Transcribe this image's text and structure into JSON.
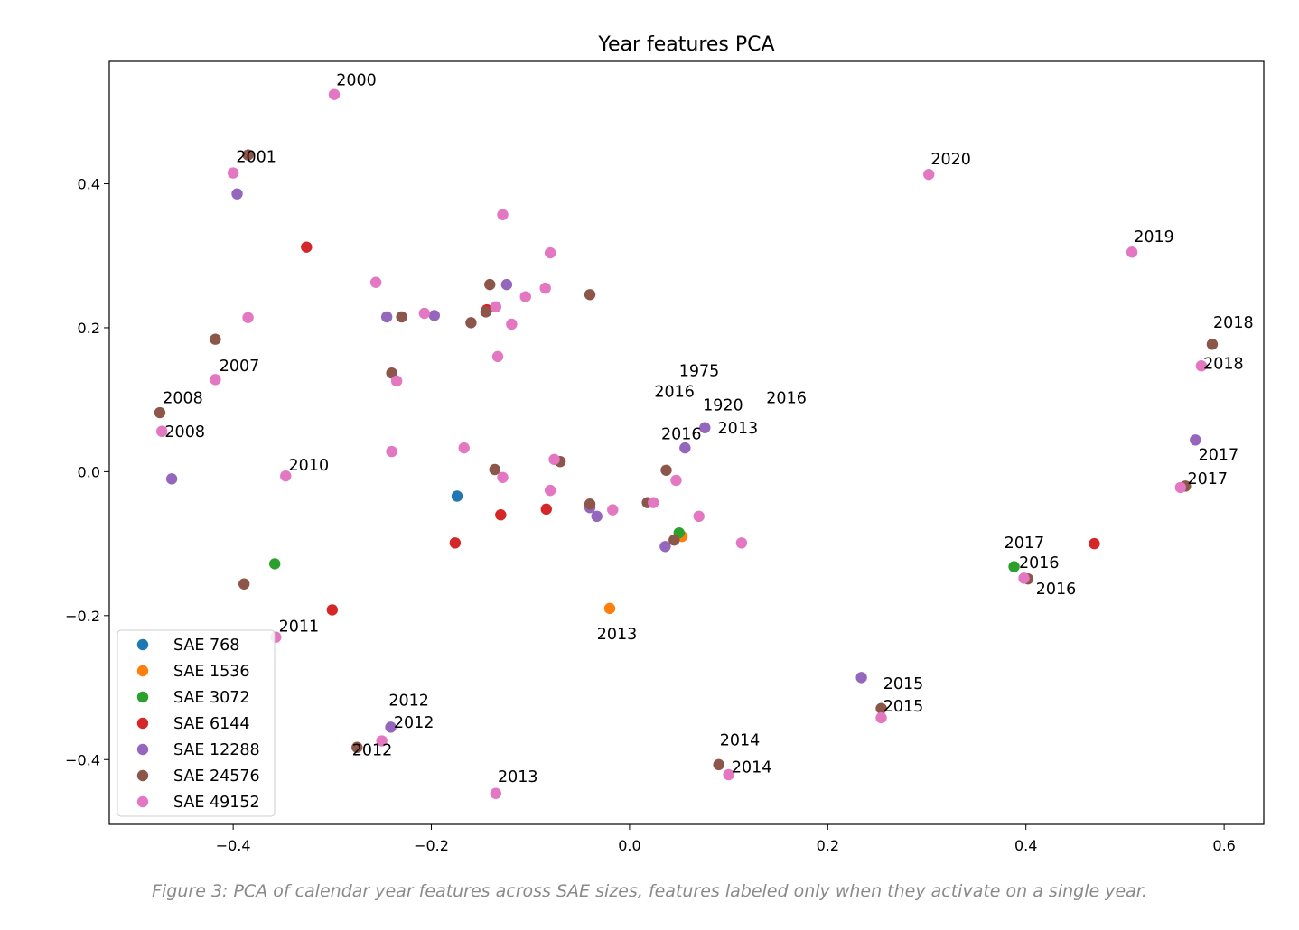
{
  "chart_data": {
    "type": "scatter",
    "title": "Year features PCA",
    "xlabel": "",
    "ylabel": "",
    "xlim": [
      -0.525,
      0.64
    ],
    "ylim": [
      -0.49,
      0.57
    ],
    "xticks": [
      -0.4,
      -0.2,
      0.0,
      0.2,
      0.4,
      0.6
    ],
    "xtick_labels": [
      "−0.4",
      "−0.2",
      "0.0",
      "0.2",
      "0.4",
      "0.6"
    ],
    "yticks": [
      -0.4,
      -0.2,
      0.0,
      0.2,
      0.4
    ],
    "ytick_labels": [
      "−0.4",
      "−0.2",
      "0.0",
      "0.2",
      "0.4"
    ],
    "grid": false,
    "legend_position": "lower-left",
    "series": [
      {
        "name": "SAE 768",
        "color": "#1f77b4",
        "points": [
          [
            -0.174,
            -0.034
          ]
        ]
      },
      {
        "name": "SAE 1536",
        "color": "#ff7f0e",
        "points": [
          [
            0.053,
            -0.09
          ],
          [
            -0.02,
            -0.19
          ]
        ]
      },
      {
        "name": "SAE 3072",
        "color": "#2ca02c",
        "points": [
          [
            -0.358,
            -0.128
          ],
          [
            0.05,
            -0.085
          ],
          [
            0.388,
            -0.132
          ]
        ]
      },
      {
        "name": "SAE 6144",
        "color": "#d62728",
        "points": [
          [
            -0.326,
            0.312
          ],
          [
            -0.144,
            0.225
          ],
          [
            -0.13,
            -0.06
          ],
          [
            -0.176,
            -0.099
          ],
          [
            -0.084,
            -0.052
          ],
          [
            -0.3,
            -0.192
          ],
          [
            0.469,
            -0.1
          ]
        ]
      },
      {
        "name": "SAE 12288",
        "color": "#9467bd",
        "points": [
          [
            -0.396,
            0.386
          ],
          [
            -0.245,
            0.215
          ],
          [
            -0.197,
            0.217
          ],
          [
            -0.124,
            0.26
          ],
          [
            -0.462,
            -0.01
          ],
          [
            -0.04,
            -0.05
          ],
          [
            -0.033,
            -0.062
          ],
          [
            0.036,
            -0.104
          ],
          [
            0.056,
            0.033
          ],
          [
            0.076,
            0.061
          ],
          [
            0.571,
            0.044
          ],
          [
            0.234,
            -0.286
          ],
          [
            -0.241,
            -0.355
          ]
        ]
      },
      {
        "name": "SAE 24576",
        "color": "#8c564b",
        "points": [
          [
            -0.385,
            0.44
          ],
          [
            -0.418,
            0.184
          ],
          [
            -0.23,
            0.215
          ],
          [
            -0.24,
            0.137
          ],
          [
            -0.141,
            0.26
          ],
          [
            -0.16,
            0.207
          ],
          [
            -0.145,
            0.222
          ],
          [
            -0.04,
            0.246
          ],
          [
            -0.474,
            0.082
          ],
          [
            -0.136,
            0.003
          ],
          [
            -0.07,
            0.014
          ],
          [
            -0.04,
            -0.045
          ],
          [
            0.018,
            -0.043
          ],
          [
            0.037,
            0.002
          ],
          [
            0.045,
            -0.095
          ],
          [
            0.588,
            0.177
          ],
          [
            0.561,
            -0.02
          ],
          [
            0.402,
            -0.149
          ],
          [
            -0.389,
            -0.156
          ],
          [
            0.254,
            -0.329
          ],
          [
            -0.275,
            -0.383
          ],
          [
            0.09,
            -0.407
          ]
        ]
      },
      {
        "name": "SAE 49152",
        "color": "#e377c2",
        "points": [
          [
            -0.298,
            0.524
          ],
          [
            -0.4,
            0.415
          ],
          [
            -0.128,
            0.357
          ],
          [
            -0.08,
            0.304
          ],
          [
            -0.256,
            0.263
          ],
          [
            -0.385,
            0.214
          ],
          [
            -0.207,
            0.22
          ],
          [
            -0.135,
            0.229
          ],
          [
            -0.105,
            0.243
          ],
          [
            -0.085,
            0.255
          ],
          [
            -0.119,
            0.205
          ],
          [
            -0.133,
            0.16
          ],
          [
            -0.418,
            0.128
          ],
          [
            -0.235,
            0.126
          ],
          [
            -0.472,
            0.056
          ],
          [
            -0.24,
            0.028
          ],
          [
            -0.167,
            0.033
          ],
          [
            -0.128,
            -0.008
          ],
          [
            -0.076,
            0.017
          ],
          [
            -0.08,
            -0.026
          ],
          [
            -0.347,
            -0.006
          ],
          [
            -0.017,
            -0.053
          ],
          [
            0.024,
            -0.043
          ],
          [
            0.047,
            -0.012
          ],
          [
            0.07,
            -0.062
          ],
          [
            0.113,
            -0.099
          ],
          [
            0.302,
            0.413
          ],
          [
            0.507,
            0.305
          ],
          [
            0.577,
            0.147
          ],
          [
            0.556,
            -0.022
          ],
          [
            0.398,
            -0.148
          ],
          [
            -0.357,
            -0.23
          ],
          [
            0.254,
            -0.342
          ],
          [
            -0.25,
            -0.374
          ],
          [
            -0.135,
            -0.447
          ],
          [
            0.1,
            -0.421
          ]
        ]
      }
    ],
    "annotations": [
      {
        "text": "2000",
        "x": -0.296,
        "y": 0.537
      },
      {
        "text": "2001",
        "x": -0.397,
        "y": 0.43
      },
      {
        "text": "2007",
        "x": -0.414,
        "y": 0.14
      },
      {
        "text": "2008",
        "x": -0.471,
        "y": 0.095
      },
      {
        "text": "2008",
        "x": -0.469,
        "y": 0.048
      },
      {
        "text": "2010",
        "x": -0.344,
        "y": 0.002
      },
      {
        "text": "2011",
        "x": -0.354,
        "y": -0.222
      },
      {
        "text": "2012",
        "x": -0.243,
        "y": -0.325
      },
      {
        "text": "2012",
        "x": -0.238,
        "y": -0.356
      },
      {
        "text": "2012",
        "x": -0.28,
        "y": -0.394
      },
      {
        "text": "2013",
        "x": -0.133,
        "y": -0.431
      },
      {
        "text": "2013",
        "x": -0.033,
        "y": -0.233
      },
      {
        "text": "1975",
        "x": 0.05,
        "y": 0.133
      },
      {
        "text": "2016",
        "x": 0.025,
        "y": 0.104
      },
      {
        "text": "1920",
        "x": 0.074,
        "y": 0.085
      },
      {
        "text": "2016",
        "x": 0.138,
        "y": 0.095
      },
      {
        "text": "2013",
        "x": 0.089,
        "y": 0.053
      },
      {
        "text": "2016",
        "x": 0.032,
        "y": 0.045
      },
      {
        "text": "2020",
        "x": 0.304,
        "y": 0.427
      },
      {
        "text": "2019",
        "x": 0.509,
        "y": 0.319
      },
      {
        "text": "2018",
        "x": 0.589,
        "y": 0.2
      },
      {
        "text": "2018",
        "x": 0.579,
        "y": 0.143
      },
      {
        "text": "2017",
        "x": 0.574,
        "y": 0.016
      },
      {
        "text": "2017",
        "x": 0.563,
        "y": -0.017
      },
      {
        "text": "2017",
        "x": 0.378,
        "y": -0.106
      },
      {
        "text": "2016",
        "x": 0.393,
        "y": -0.134
      },
      {
        "text": "2016",
        "x": 0.41,
        "y": -0.17
      },
      {
        "text": "2015",
        "x": 0.256,
        "y": -0.302
      },
      {
        "text": "2015",
        "x": 0.256,
        "y": -0.333
      },
      {
        "text": "2014",
        "x": 0.091,
        "y": -0.38
      },
      {
        "text": "2014",
        "x": 0.103,
        "y": -0.418
      }
    ]
  },
  "caption": "Figure 3: PCA of calendar year features across SAE sizes, features labeled only when they activate on a single year."
}
